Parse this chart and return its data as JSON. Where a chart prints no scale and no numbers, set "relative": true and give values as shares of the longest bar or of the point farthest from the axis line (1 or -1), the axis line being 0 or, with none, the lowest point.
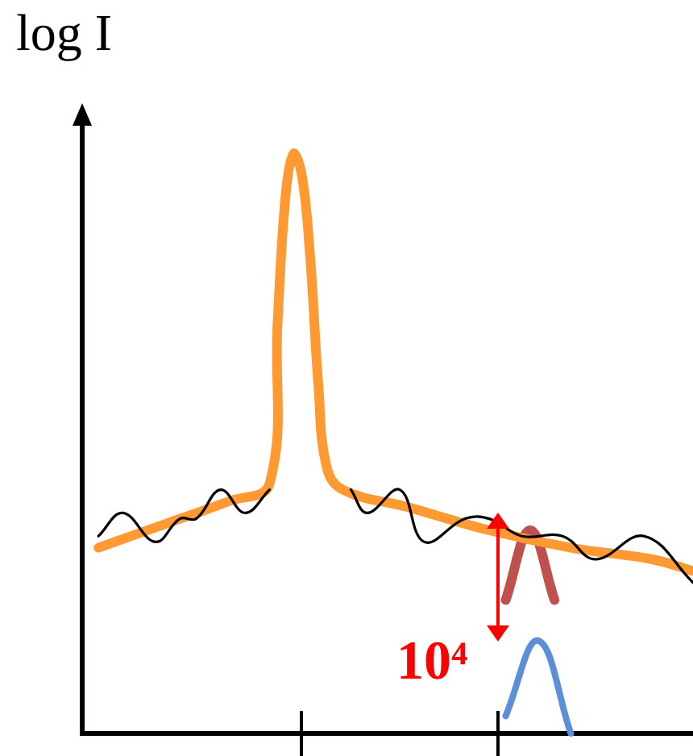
{
  "chart_data": {
    "type": "line",
    "relative": true,
    "ylabel": "log I",
    "annotations": [
      "10⁴"
    ],
    "legend": false,
    "grid": false,
    "tick_labels": false,
    "categories": [
      null,
      null,
      null,
      null,
      null,
      null,
      null,
      null,
      null,
      null,
      null,
      null,
      null,
      null,
      null,
      null,
      null,
      null,
      null,
      null,
      null,
      null,
      null,
      null,
      null,
      null,
      null,
      null,
      null,
      null,
      null,
      null,
      null,
      null,
      null,
      null,
      null,
      null,
      null,
      null,
      null,
      null,
      null,
      null,
      null,
      null,
      null,
      null,
      null,
      null,
      null,
      null,
      null,
      null,
      null,
      null,
      null,
      null,
      null,
      null,
      null,
      null,
      null,
      null,
      null,
      null,
      null,
      null,
      null,
      null,
      null,
      null,
      null,
      null,
      null,
      null
    ],
    "series": [
      {
        "color": "#ff9a33",
        "values": [
          null,
          null,
          0.32,
          null,
          null,
          null,
          null,
          null,
          null,
          null,
          0.36,
          null,
          null,
          null,
          null,
          null,
          null,
          null,
          0.4,
          null,
          null,
          null,
          null,
          0.43,
          0.71,
          0.93,
          1,
          0.96,
          0.82,
          0.6,
          0.46,
          null,
          0.42,
          null,
          null,
          null,
          null,
          null,
          null,
          null,
          0.39,
          null,
          null,
          null,
          null,
          null,
          null,
          null,
          null,
          null,
          0.35,
          null,
          null,
          null,
          null,
          null,
          null,
          null,
          null,
          null,
          0.32,
          null,
          null,
          null,
          null,
          null,
          null,
          null,
          null,
          null,
          0.3,
          null,
          null,
          null,
          null,
          0.28
        ]
      },
      {
        "color": "#000000",
        "values": [
          null,
          null,
          0.34,
          null,
          null,
          0.38,
          null,
          null,
          null,
          0.33,
          null,
          null,
          0.37,
          null,
          0.37,
          null,
          null,
          0.42,
          null,
          null,
          0.38,
          null,
          null,
          0.42,
          null,
          null,
          null,
          null,
          null,
          null,
          null,
          null,
          null,
          null,
          null,
          null,
          null,
          null,
          null,
          null,
          null,
          null,
          null,
          null,
          null,
          null,
          null,
          null,
          null,
          null,
          null,
          null,
          null,
          null,
          null,
          null,
          null,
          null,
          null,
          null,
          null,
          null,
          null,
          null,
          null,
          null,
          null,
          null,
          null,
          null,
          null,
          null,
          null,
          null,
          null,
          null
        ]
      },
      {
        "color": "#000000",
        "values": [
          null,
          null,
          null,
          null,
          null,
          null,
          null,
          null,
          null,
          null,
          null,
          null,
          null,
          null,
          null,
          null,
          null,
          null,
          null,
          null,
          null,
          null,
          null,
          null,
          null,
          null,
          null,
          null,
          null,
          null,
          null,
          null,
          null,
          0.42,
          null,
          0.38,
          null,
          null,
          null,
          0.42,
          null,
          null,
          0.33,
          null,
          null,
          null,
          null,
          0.37,
          null,
          null,
          0.37,
          null,
          null,
          null,
          0.34,
          null,
          null,
          null,
          null,
          0.34,
          null,
          null,
          null,
          0.3,
          null,
          null,
          null,
          null,
          null,
          0.34,
          null,
          null,
          null,
          null,
          null,
          0.26
        ]
      },
      {
        "color": "#c0504d",
        "values": [
          null,
          null,
          null,
          null,
          null,
          null,
          null,
          null,
          null,
          null,
          null,
          null,
          null,
          null,
          null,
          null,
          null,
          null,
          null,
          null,
          null,
          null,
          null,
          null,
          null,
          null,
          null,
          null,
          null,
          null,
          null,
          null,
          null,
          null,
          null,
          null,
          null,
          null,
          null,
          null,
          null,
          null,
          null,
          null,
          null,
          null,
          null,
          null,
          null,
          null,
          null,
          null,
          0.23,
          null,
          null,
          0.35,
          null,
          null,
          0.23,
          null,
          null,
          null,
          null,
          null,
          null,
          null,
          null,
          null,
          null,
          null,
          null,
          null,
          null,
          null,
          null,
          null
        ]
      },
      {
        "color": "#5b8fd6",
        "values": [
          null,
          null,
          null,
          null,
          null,
          null,
          null,
          null,
          null,
          null,
          null,
          null,
          null,
          null,
          null,
          null,
          null,
          null,
          null,
          null,
          null,
          null,
          null,
          null,
          null,
          null,
          null,
          null,
          null,
          null,
          null,
          null,
          null,
          null,
          null,
          null,
          null,
          null,
          null,
          null,
          null,
          null,
          null,
          null,
          null,
          null,
          null,
          null,
          null,
          null,
          null,
          null,
          0.03,
          null,
          null,
          null,
          0.16,
          null,
          null,
          null,
          0,
          null,
          null,
          null,
          null,
          null,
          null,
          null,
          null,
          null,
          null,
          null,
          null,
          null,
          null,
          null
        ]
      }
    ]
  }
}
